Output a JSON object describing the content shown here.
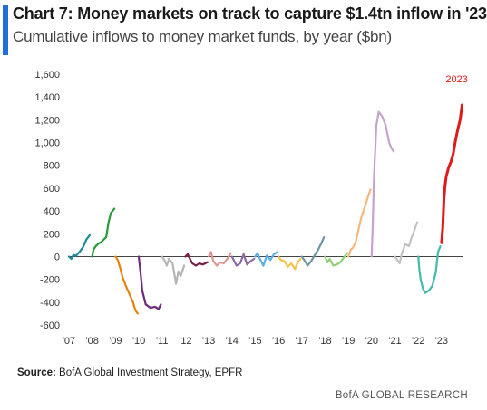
{
  "header": {
    "title": "Chart 7: Money markets on track to capture $1.4tn inflow in '23",
    "subtitle": "Cumulative inflows to money market funds, by year ($bn)",
    "accent_color": "#1f6fd6"
  },
  "footer": {
    "source_label": "Source:",
    "source_text": " BofA Global Investment Strategy, EPFR",
    "brand": "BofA GLOBAL RESEARCH"
  },
  "chart_data": {
    "type": "line",
    "title": "Chart 7: Money markets on track to capture $1.4tn inflow in '23",
    "subtitle": "Cumulative inflows to money market funds, by year ($bn)",
    "xlabel": "",
    "ylabel": "",
    "ylim": [
      -600,
      1600
    ],
    "yticks": [
      -600,
      -400,
      -200,
      0,
      200,
      400,
      600,
      800,
      1000,
      1200,
      1400,
      1600
    ],
    "ytick_labels": [
      "-600",
      "-400",
      "-200",
      "0",
      "200",
      "400",
      "600",
      "800",
      "1,000",
      "1,200",
      "1,400",
      "1,600"
    ],
    "xlim": [
      2007,
      2023.9
    ],
    "xticks": [
      2007,
      2008,
      2009,
      2010,
      2011,
      2012,
      2013,
      2014,
      2015,
      2016,
      2017,
      2018,
      2019,
      2020,
      2021,
      2022,
      2023
    ],
    "xtick_labels": [
      "'07",
      "'08",
      "'09",
      "'10",
      "'11",
      "'12",
      "'13",
      "'14",
      "'15",
      "'16",
      "'17",
      "'18",
      "'19",
      "'20",
      "'21",
      "'22",
      "'23"
    ],
    "grid": false,
    "zero_line": true,
    "annotations": [
      {
        "text": "2023",
        "x": 2023.65,
        "y": 1530,
        "color": "#e0191b"
      }
    ],
    "series": [
      {
        "name": "",
        "color": "#1a8a96",
        "x": [
          2007.0,
          2007.1,
          2007.2,
          2007.3,
          2007.45,
          2007.6,
          2007.75,
          2007.9
        ],
        "y": [
          0,
          -20,
          15,
          5,
          40,
          80,
          150,
          190
        ]
      },
      {
        "name": "",
        "color": "#2a9a3c",
        "x": [
          2008.0,
          2008.05,
          2008.15,
          2008.25,
          2008.4,
          2008.5,
          2008.6,
          2008.7,
          2008.8,
          2008.95
        ],
        "y": [
          0,
          60,
          90,
          110,
          130,
          150,
          170,
          300,
          380,
          420
        ]
      },
      {
        "name": "",
        "color": "#e8820e",
        "x": [
          2009.0,
          2009.1,
          2009.2,
          2009.3,
          2009.45,
          2009.6,
          2009.75,
          2009.85,
          2009.95
        ],
        "y": [
          0,
          -30,
          -100,
          -180,
          -260,
          -330,
          -400,
          -470,
          -500
        ]
      },
      {
        "name": "",
        "color": "#6b2d7a",
        "x": [
          2010.0,
          2010.08,
          2010.15,
          2010.3,
          2010.5,
          2010.7,
          2010.85,
          2010.95
        ],
        "y": [
          0,
          -150,
          -300,
          -420,
          -450,
          -440,
          -460,
          -420
        ]
      },
      {
        "name": "",
        "color": "#b5b5b5",
        "x": [
          2011.0,
          2011.1,
          2011.2,
          2011.3,
          2011.45,
          2011.6,
          2011.7,
          2011.8,
          2011.95
        ],
        "y": [
          0,
          -30,
          -80,
          -20,
          -60,
          -240,
          -130,
          -170,
          -80
        ]
      },
      {
        "name": "",
        "color": "#7a1d44",
        "x": [
          2012.0,
          2012.1,
          2012.2,
          2012.3,
          2012.45,
          2012.6,
          2012.75,
          2012.95
        ],
        "y": [
          0,
          20,
          -20,
          -60,
          -80,
          -60,
          -70,
          -50
        ]
      },
      {
        "name": "",
        "color": "#e0928e",
        "x": [
          2013.0,
          2013.1,
          2013.2,
          2013.35,
          2013.5,
          2013.65,
          2013.8,
          2013.95
        ],
        "y": [
          0,
          40,
          -40,
          -80,
          -50,
          -60,
          -20,
          30
        ]
      },
      {
        "name": "",
        "color": "#8a6aa0",
        "x": [
          2014.0,
          2014.1,
          2014.2,
          2014.35,
          2014.5,
          2014.65,
          2014.8,
          2014.95
        ],
        "y": [
          0,
          -40,
          -80,
          -60,
          20,
          -70,
          -40,
          -20
        ]
      },
      {
        "name": "",
        "color": "#5aaee0",
        "x": [
          2015.0,
          2015.1,
          2015.2,
          2015.35,
          2015.5,
          2015.65,
          2015.8,
          2015.95
        ],
        "y": [
          0,
          30,
          -20,
          -80,
          10,
          -30,
          20,
          40
        ]
      },
      {
        "name": "",
        "color": "#f4c24a",
        "x": [
          2016.0,
          2016.1,
          2016.25,
          2016.4,
          2016.55,
          2016.7,
          2016.85,
          2016.95
        ],
        "y": [
          0,
          -30,
          -40,
          -90,
          -60,
          -110,
          -40,
          -20
        ]
      },
      {
        "name": "",
        "color": "#6f94a2",
        "x": [
          2017.0,
          2017.1,
          2017.25,
          2017.4,
          2017.55,
          2017.7,
          2017.85,
          2017.95
        ],
        "y": [
          0,
          -30,
          -80,
          -40,
          10,
          60,
          120,
          170
        ]
      },
      {
        "name": "",
        "color": "#8fcf75",
        "x": [
          2018.0,
          2018.1,
          2018.2,
          2018.35,
          2018.5,
          2018.65,
          2018.8,
          2018.95
        ],
        "y": [
          0,
          -50,
          -20,
          -80,
          -70,
          -50,
          -10,
          30
        ]
      },
      {
        "name": "",
        "color": "#f6b77a",
        "x": [
          2019.0,
          2019.1,
          2019.2,
          2019.3,
          2019.45,
          2019.55,
          2019.7,
          2019.85,
          2019.95
        ],
        "y": [
          0,
          60,
          80,
          120,
          250,
          340,
          430,
          530,
          590
        ]
      },
      {
        "name": "",
        "color": "#c5a4c9",
        "x": [
          2020.0,
          2020.05,
          2020.1,
          2020.2,
          2020.3,
          2020.45,
          2020.6,
          2020.75,
          2020.85,
          2020.95
        ],
        "y": [
          0,
          300,
          700,
          1150,
          1270,
          1230,
          1150,
          1000,
          950,
          920
        ]
      },
      {
        "name": "",
        "color": "#c2c2c2",
        "x": [
          2021.0,
          2021.1,
          2021.2,
          2021.3,
          2021.45,
          2021.6,
          2021.7,
          2021.85,
          2021.95
        ],
        "y": [
          0,
          -30,
          -60,
          30,
          110,
          90,
          160,
          240,
          300
        ]
      },
      {
        "name": "",
        "color": "#44bba8",
        "x": [
          2022.0,
          2022.05,
          2022.1,
          2022.2,
          2022.3,
          2022.45,
          2022.6,
          2022.75,
          2022.85,
          2022.95
        ],
        "y": [
          0,
          -120,
          -200,
          -280,
          -320,
          -300,
          -260,
          -140,
          40,
          90
        ]
      },
      {
        "name": "",
        "color": "#e0191b",
        "x": [
          2023.0,
          2023.05,
          2023.1,
          2023.15,
          2023.2,
          2023.3,
          2023.4,
          2023.5,
          2023.6,
          2023.7,
          2023.8,
          2023.88
        ],
        "y": [
          120,
          250,
          500,
          620,
          700,
          780,
          830,
          900,
          1020,
          1120,
          1200,
          1330
        ]
      }
    ]
  }
}
